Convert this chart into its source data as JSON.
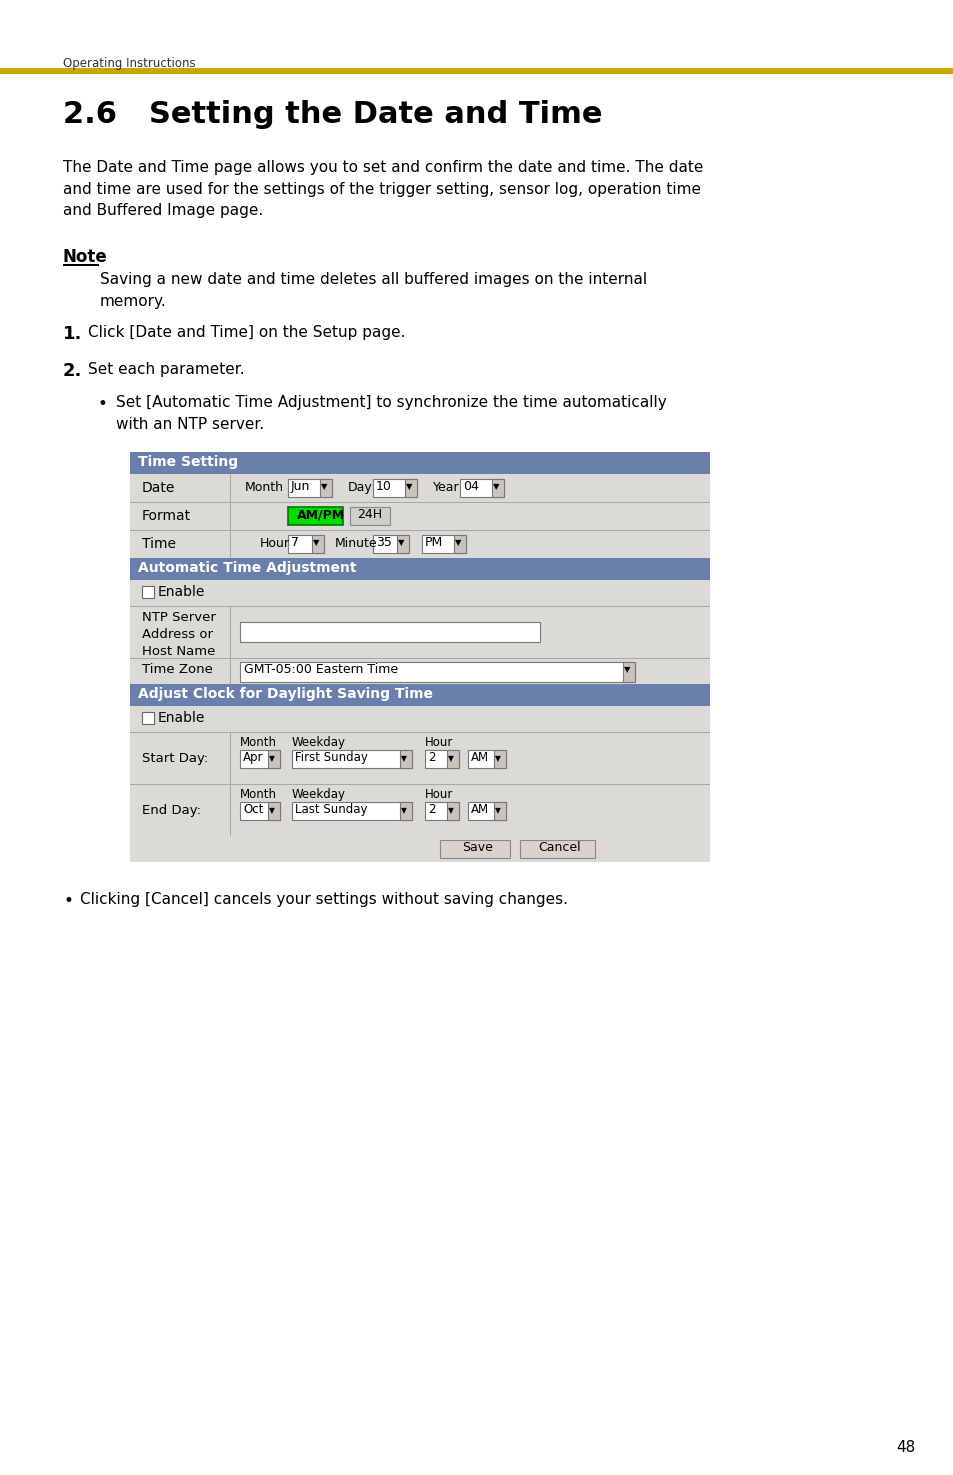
{
  "page_bg": "#ffffff",
  "header_text": "Operating Instructions",
  "header_line_color": "#c8a800",
  "title": "2.6   Setting the Date and Time",
  "body_text1": "The Date and Time page allows you to set and confirm the date and time. The date\nand time are used for the settings of the trigger setting, sensor log, operation time\nand Buffered Image page.",
  "note_label": "Note",
  "note_text": "Saving a new date and time deletes all buffered images on the internal\nmemory.",
  "step1": "Click [Date and Time] on the Setup page.",
  "step2": "Set each parameter.",
  "bullet1": "Set [Automatic Time Adjustment] to synchronize the time automatically\nwith an NTP server.",
  "footer_text": "Clicking [Cancel] cancels your settings without saving changes.",
  "page_number": "48",
  "table_header_color": "#6b7fad",
  "table_header_text_color": "#ffffff",
  "table_bg": "#c8c4bc",
  "table_row_light": "#dcdad4",
  "table_row_alt": "#e0ded8",
  "green_button_color": "#00dd00",
  "font_color": "#000000",
  "header_font_color": "#333333"
}
